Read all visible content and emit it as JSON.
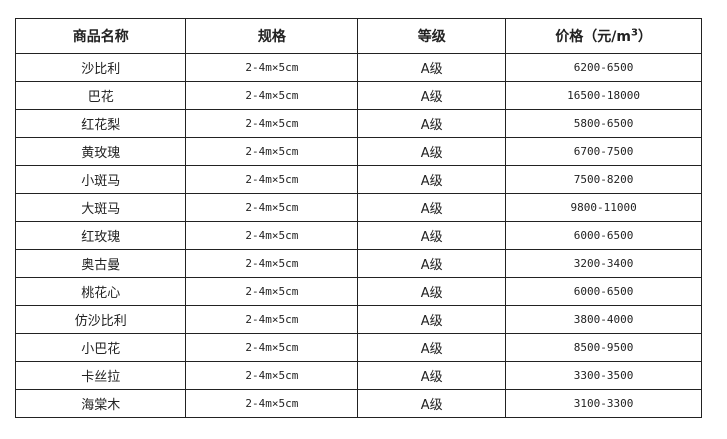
{
  "headers": {
    "name": "商品名称",
    "spec": "规格",
    "grade": "等级",
    "price": "价格（元/m",
    "price_sup": "3",
    "price_close": "）"
  },
  "rows": [
    {
      "name": "沙比利",
      "spec": "2-4m×5cm",
      "grade": "A级",
      "price": "6200-6500"
    },
    {
      "name": "巴花",
      "spec": "2-4m×5cm",
      "grade": "A级",
      "price": "16500-18000"
    },
    {
      "name": "红花梨",
      "spec": "2-4m×5cm",
      "grade": "A级",
      "price": "5800-6500"
    },
    {
      "name": "黄玫瑰",
      "spec": "2-4m×5cm",
      "grade": "A级",
      "price": "6700-7500"
    },
    {
      "name": "小斑马",
      "spec": "2-4m×5cm",
      "grade": "A级",
      "price": "7500-8200"
    },
    {
      "name": "大斑马",
      "spec": "2-4m×5cm",
      "grade": "A级",
      "price": "9800-11000"
    },
    {
      "name": "红玫瑰",
      "spec": "2-4m×5cm",
      "grade": "A级",
      "price": "6000-6500"
    },
    {
      "name": "奥古曼",
      "spec": "2-4m×5cm",
      "grade": "A级",
      "price": "3200-3400"
    },
    {
      "name": "桃花心",
      "spec": "2-4m×5cm",
      "grade": "A级",
      "price": "6000-6500"
    },
    {
      "name": "仿沙比利",
      "spec": "2-4m×5cm",
      "grade": "A级",
      "price": "3800-4000"
    },
    {
      "name": "小巴花",
      "spec": "2-4m×5cm",
      "grade": "A级",
      "price": "8500-9500"
    },
    {
      "name": "卡丝拉",
      "spec": "2-4m×5cm",
      "grade": "A级",
      "price": "3300-3500"
    },
    {
      "name": "海棠木",
      "spec": "2-4m×5cm",
      "grade": "A级",
      "price": "3100-3300"
    }
  ]
}
